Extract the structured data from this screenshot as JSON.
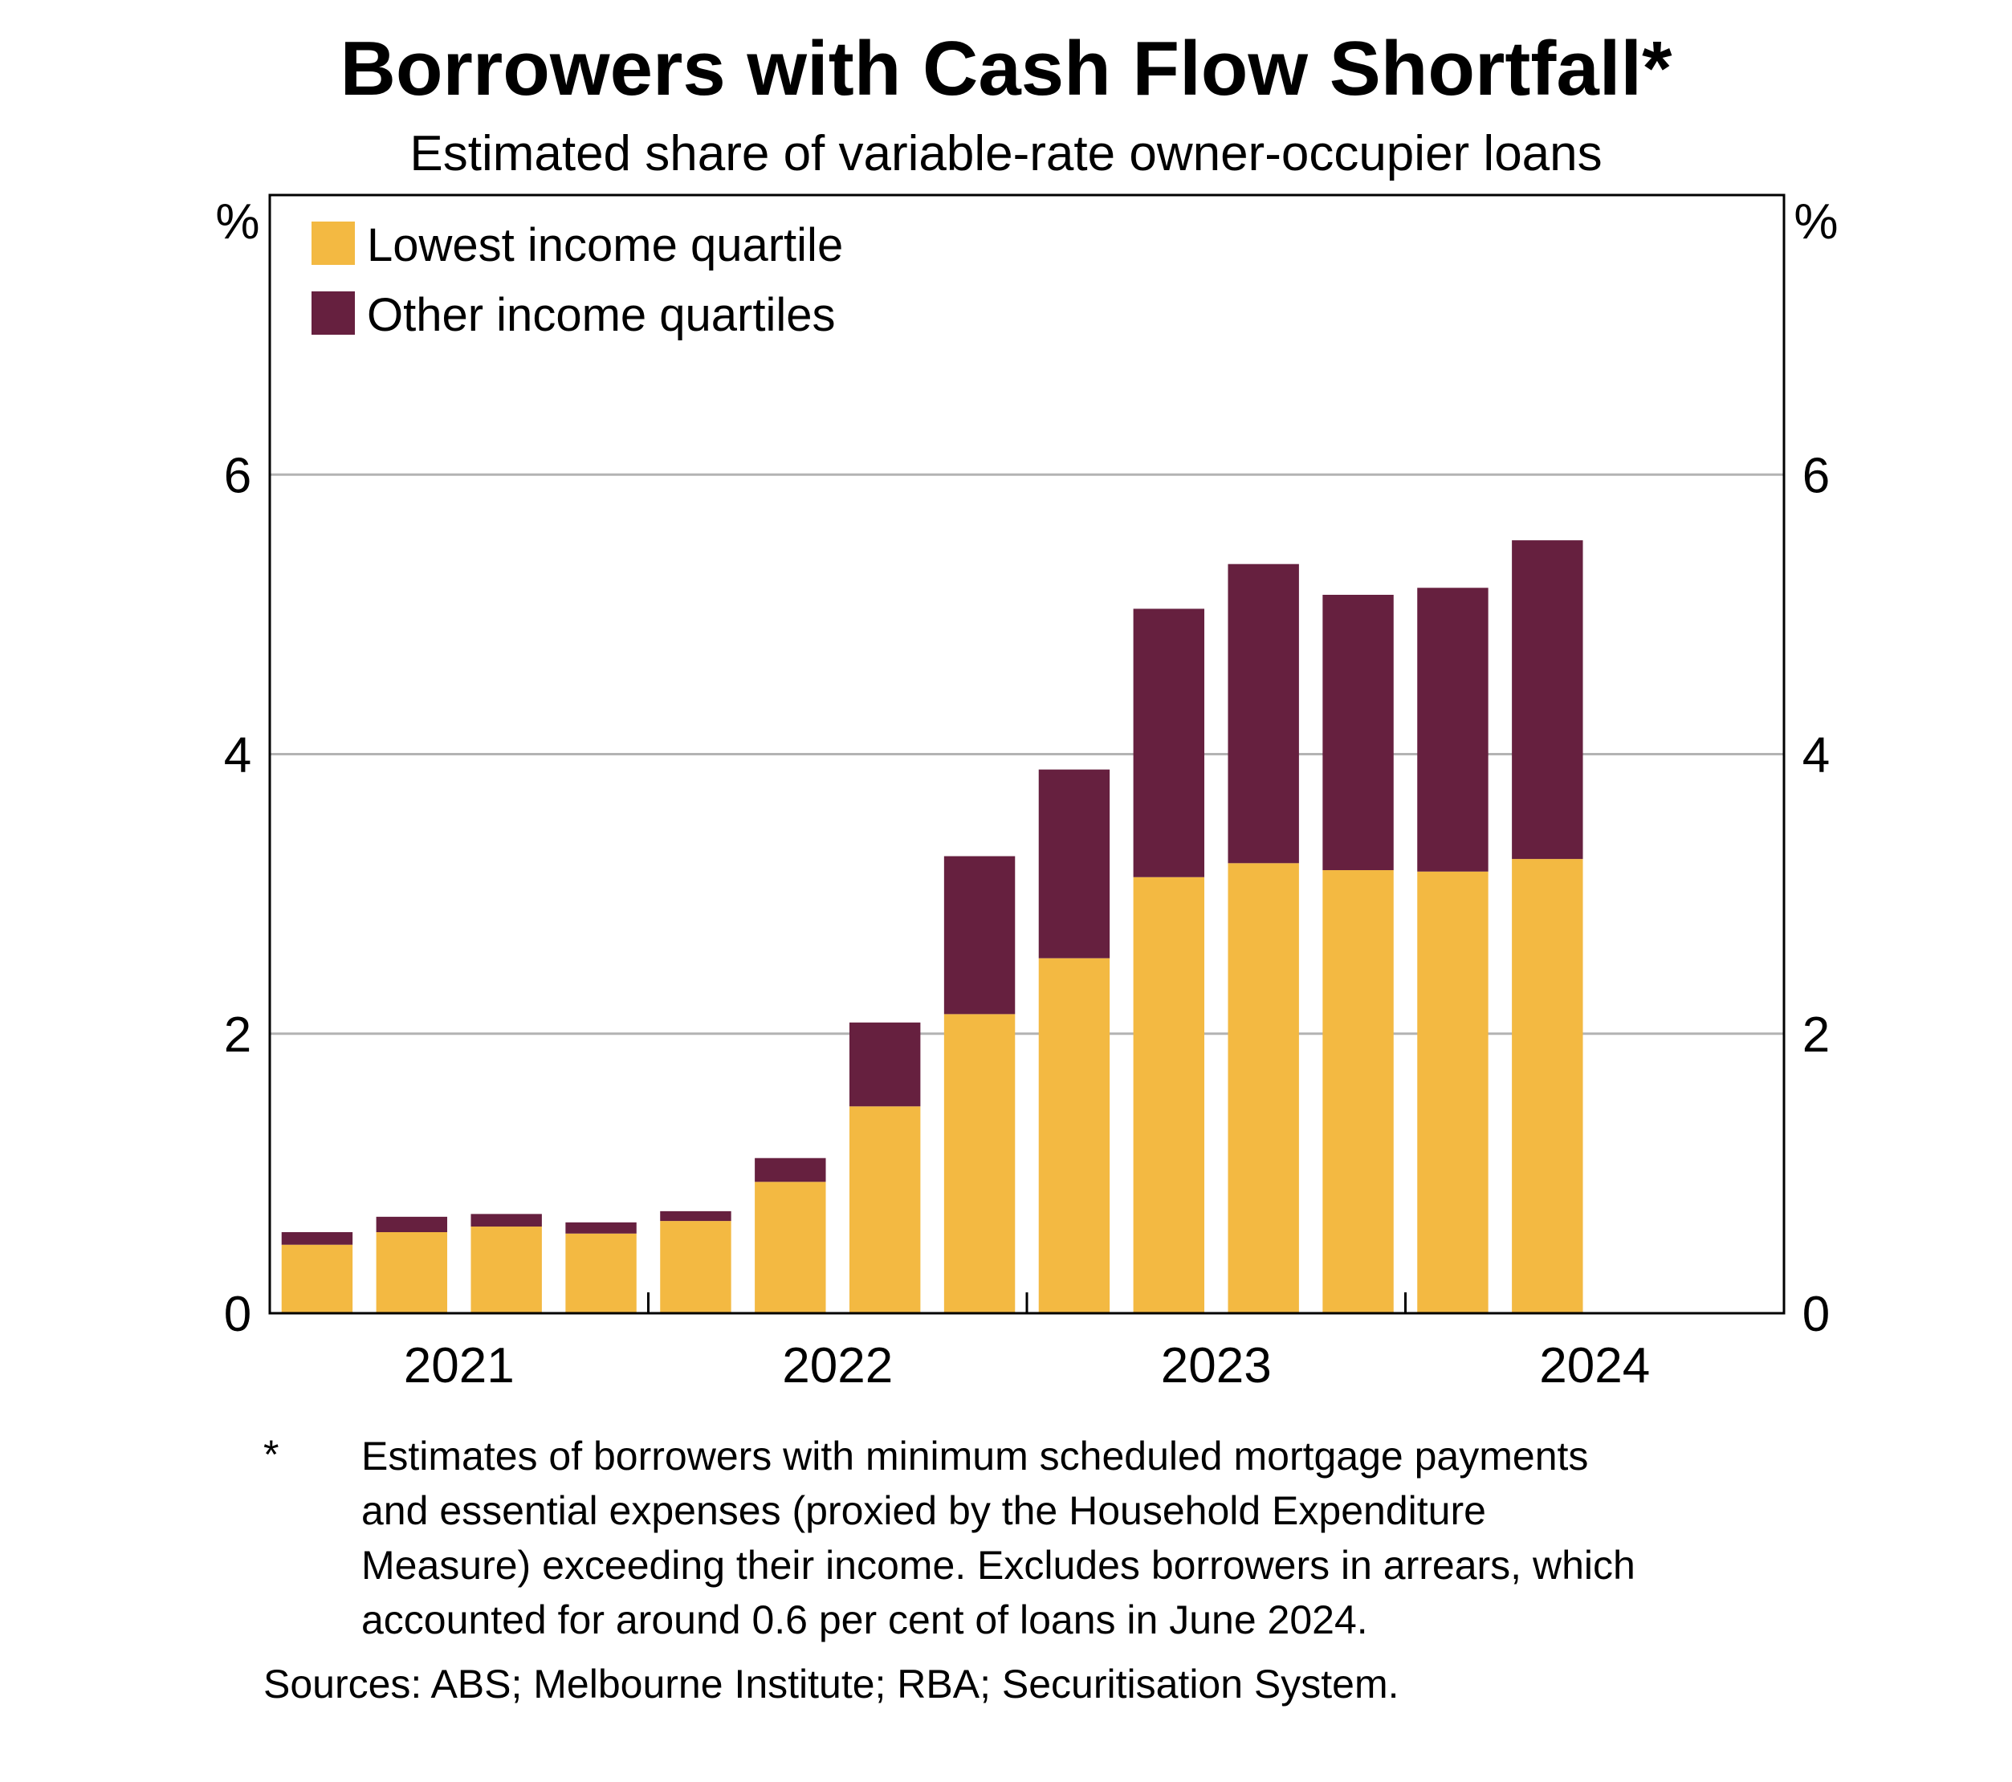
{
  "chart_data": {
    "type": "bar",
    "stacked": true,
    "title": "Borrowers with Cash Flow Shortfall*",
    "subtitle": "Estimated share of variable-rate owner-occupier loans",
    "ylabel_left": "%",
    "ylabel_right": "%",
    "ylim": [
      0,
      8
    ],
    "yticks": [
      0,
      2,
      4,
      6
    ],
    "grid": true,
    "legend_position": "top-left",
    "x_year_labels": [
      "2021",
      "2022",
      "2023",
      "2024"
    ],
    "categories": [
      "2021-Q1",
      "2021-Q2",
      "2021-Q3",
      "2021-Q4",
      "2022-Q1",
      "2022-Q2",
      "2022-Q3",
      "2022-Q4",
      "2023-Q1",
      "2023-Q2",
      "2023-Q3",
      "2023-Q4",
      "2024-Q1",
      "2024-Q2"
    ],
    "series": [
      {
        "name": "Lowest income quartile",
        "color": "#F3B942",
        "values": [
          0.49,
          0.58,
          0.62,
          0.57,
          0.66,
          0.94,
          1.48,
          2.14,
          2.54,
          3.12,
          3.22,
          3.17,
          3.16,
          3.25
        ]
      },
      {
        "name": "Other income quartiles",
        "color": "#66203F",
        "values": [
          0.09,
          0.11,
          0.09,
          0.08,
          0.07,
          0.17,
          0.6,
          1.13,
          1.35,
          1.92,
          2.14,
          1.97,
          2.03,
          2.28
        ]
      }
    ]
  },
  "footnote": {
    "marker": "*",
    "lines": [
      "Estimates of borrowers with minimum scheduled mortgage payments",
      "and essential expenses (proxied by the Household Expenditure",
      "Measure) exceeding their income. Excludes borrowers in arrears, which",
      "accounted for around 0.6 per cent of loans in June 2024."
    ]
  },
  "sources": "Sources: ABS; Melbourne Institute; RBA; Securitisation System."
}
